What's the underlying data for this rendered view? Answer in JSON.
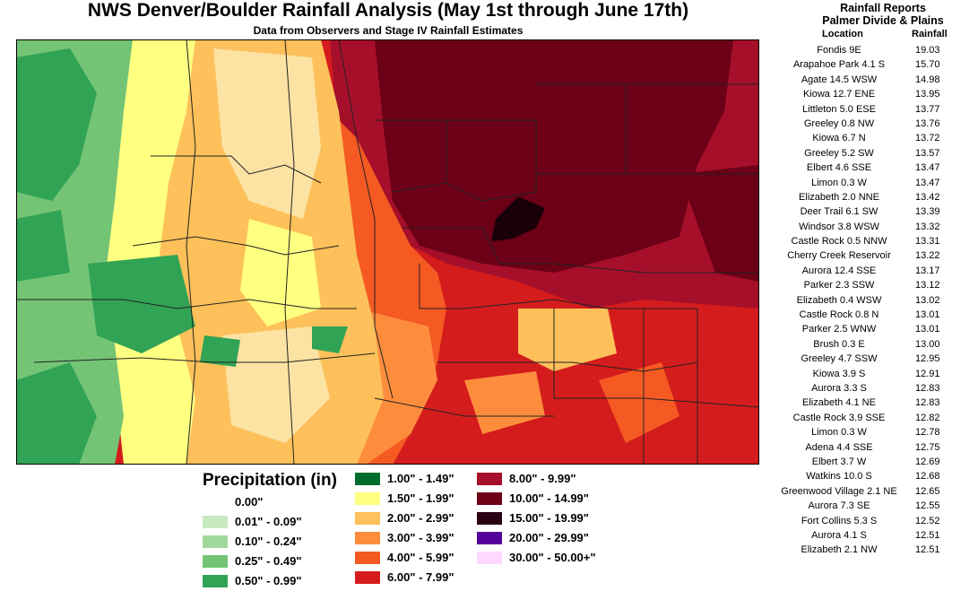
{
  "title": "NWS Denver/Boulder Rainfall Analysis (May 1st through June 17th)",
  "subtitle": "Data from Observers and Stage IV Rainfall Estimates",
  "legend": {
    "title": "Precipitation (in)",
    "columns": [
      [
        {
          "label": "0.00\"",
          "color": "#ffffff"
        },
        {
          "label": "0.01\" - 0.09\"",
          "color": "#c7e9c0"
        },
        {
          "label": "0.10\" - 0.24\"",
          "color": "#a1d99b"
        },
        {
          "label": "0.25\" - 0.49\"",
          "color": "#74c476"
        },
        {
          "label": "0.50\" - 0.99\"",
          "color": "#31a354"
        }
      ],
      [
        {
          "label": "1.00\" - 1.49\"",
          "color": "#006d2c"
        },
        {
          "label": "1.50\" - 1.99\"",
          "color": "#ffff80"
        },
        {
          "label": "2.00\" - 2.99\"",
          "color": "#fdc05a"
        },
        {
          "label": "3.00\" - 3.99\"",
          "color": "#fd8d3c"
        },
        {
          "label": "4.00\" - 5.99\"",
          "color": "#f55a23"
        },
        {
          "label": "6.00\" - 7.99\"",
          "color": "#d41c1c"
        }
      ],
      [
        {
          "label": "8.00\" - 9.99\"",
          "color": "#a50f2a"
        },
        {
          "label": "10.00\" - 14.99\"",
          "color": "#6b0016"
        },
        {
          "label": "15.00\" - 19.99\"",
          "color": "#2a0014"
        },
        {
          "label": "20.00\" - 29.99\"",
          "color": "#54009a"
        },
        {
          "label": "30.00\" - 50.00+\"",
          "color": "#ffd9ff"
        }
      ]
    ]
  },
  "reports": {
    "heading1": "Rainfall Reports",
    "heading2": "Palmer Divide & Plains",
    "col_location": "Location",
    "col_rainfall": "Rainfall",
    "rows": [
      {
        "location": "Fondis 9E",
        "rainfall": "19.03"
      },
      {
        "location": "Arapahoe Park 4.1 S",
        "rainfall": "15.70"
      },
      {
        "location": "Agate 14.5 WSW",
        "rainfall": "14.98"
      },
      {
        "location": "Kiowa 12.7 ENE",
        "rainfall": "13.95"
      },
      {
        "location": "Littleton 5.0 ESE",
        "rainfall": "13.77"
      },
      {
        "location": "Greeley 0.8 NW",
        "rainfall": "13.76"
      },
      {
        "location": "Kiowa 6.7 N",
        "rainfall": "13.72"
      },
      {
        "location": "Greeley 5.2 SW",
        "rainfall": "13.57"
      },
      {
        "location": "Elbert 4.6 SSE",
        "rainfall": "13.47"
      },
      {
        "location": "Limon 0.3 W",
        "rainfall": "13.47"
      },
      {
        "location": "Elizabeth 2.0 NNE",
        "rainfall": "13.42"
      },
      {
        "location": "Deer Trail 6.1 SW",
        "rainfall": "13.39"
      },
      {
        "location": "Windsor 3.8 WSW",
        "rainfall": "13.32"
      },
      {
        "location": "Castle Rock 0.5 NNW",
        "rainfall": "13.31"
      },
      {
        "location": "Cherry Creek Reservoir",
        "rainfall": "13.22"
      },
      {
        "location": "Aurora 12.4 SSE",
        "rainfall": "13.17"
      },
      {
        "location": "Parker 2.3 SSW",
        "rainfall": "13.12"
      },
      {
        "location": "Elizabeth 0.4 WSW",
        "rainfall": "13.02"
      },
      {
        "location": "Castle Rock 0.8 N",
        "rainfall": "13.01"
      },
      {
        "location": "Parker 2.5 WNW",
        "rainfall": "13.01"
      },
      {
        "location": "Brush 0.3 E",
        "rainfall": "13.00"
      },
      {
        "location": "Greeley 4.7 SSW",
        "rainfall": "12.95"
      },
      {
        "location": "Kiowa 3.9 S",
        "rainfall": "12.91"
      },
      {
        "location": "Aurora 3.3 S",
        "rainfall": "12.83"
      },
      {
        "location": "Elizabeth 4.1 NE",
        "rainfall": "12.83"
      },
      {
        "location": "Castle Rock 3.9 SSE",
        "rainfall": "12.82"
      },
      {
        "location": "Limon 0.3 W",
        "rainfall": "12.78"
      },
      {
        "location": "Adena 4.4 SSE",
        "rainfall": "12.75"
      },
      {
        "location": "Elbert 3.7 W",
        "rainfall": "12.69"
      },
      {
        "location": "Watkins 10.0 S",
        "rainfall": "12.68"
      },
      {
        "location": "Greenwood Village 2.1 NE",
        "rainfall": "12.65"
      },
      {
        "location": "Aurora 7.3 SE",
        "rainfall": "12.55"
      },
      {
        "location": "Fort Collins 5.3 S",
        "rainfall": "12.52"
      },
      {
        "location": "Aurora 4.1 S",
        "rainfall": "12.51"
      },
      {
        "location": "Elizabeth 2.1 NW",
        "rainfall": "12.51"
      }
    ]
  }
}
